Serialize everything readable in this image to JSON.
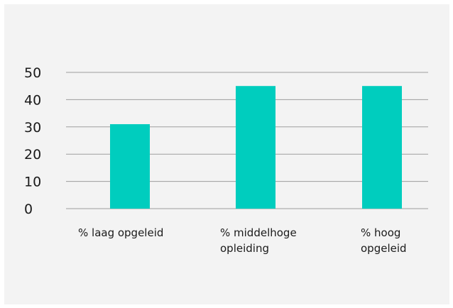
{
  "chart_data": {
    "type": "bar",
    "categories": [
      [
        "% laag opgeleid"
      ],
      [
        "% middelhoge",
        "opleiding"
      ],
      [
        "% hoog",
        "opgeleid"
      ]
    ],
    "values": [
      31,
      45,
      45
    ],
    "ylim": [
      0,
      50
    ],
    "yticks": [
      0,
      10,
      20,
      30,
      40,
      50
    ],
    "grid": true,
    "bar_color": "#00cdbe",
    "grid_color": "#9e9e9e",
    "background_color": "#f3f3f3"
  }
}
